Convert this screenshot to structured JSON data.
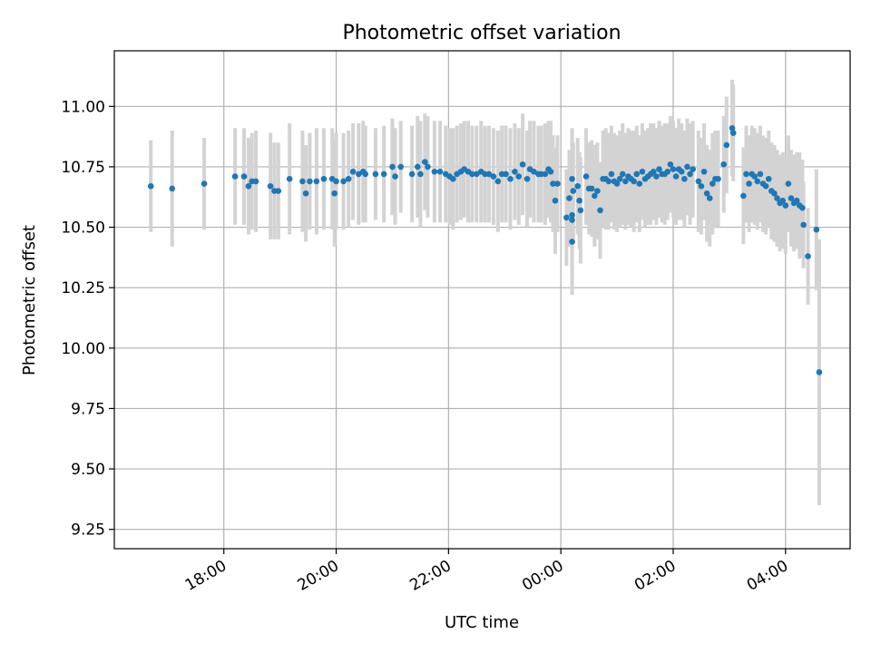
{
  "chart_data": {
    "type": "scatter",
    "title": "Photometric offset variation",
    "xlabel": "UTC time",
    "ylabel": "Photometric offset",
    "grid": true,
    "x_unit": "hours relative to 00:00 UTC",
    "xlim": [
      -7.95,
      5.15
    ],
    "ylim": [
      9.17,
      11.23
    ],
    "x_ticks": [
      {
        "value": -6,
        "label": "18:00"
      },
      {
        "value": -4,
        "label": "20:00"
      },
      {
        "value": -2,
        "label": "22:00"
      },
      {
        "value": 0,
        "label": "00:00"
      },
      {
        "value": 2,
        "label": "02:00"
      },
      {
        "value": 4,
        "label": "04:00"
      }
    ],
    "y_ticks": [
      {
        "value": 9.25,
        "label": "9.25"
      },
      {
        "value": 9.5,
        "label": "9.50"
      },
      {
        "value": 9.75,
        "label": "9.75"
      },
      {
        "value": 10.0,
        "label": "10.00"
      },
      {
        "value": 10.25,
        "label": "10.25"
      },
      {
        "value": 10.5,
        "label": "10.50"
      },
      {
        "value": 10.75,
        "label": "10.75"
      },
      {
        "value": 11.0,
        "label": "11.00"
      }
    ],
    "colors": {
      "point": "#1f77b4",
      "errorbar": "#d3d3d3",
      "grid": "#b0b0b0",
      "axis": "#000000"
    },
    "series": [
      {
        "name": "offset",
        "columns": [
          "x",
          "y",
          "err"
        ],
        "points": [
          [
            -7.3,
            10.67,
            0.19
          ],
          [
            -6.92,
            10.66,
            0.24
          ],
          [
            -6.35,
            10.68,
            0.19
          ],
          [
            -5.8,
            10.71,
            0.2
          ],
          [
            -5.64,
            10.71,
            0.2
          ],
          [
            -5.56,
            10.67,
            0.2
          ],
          [
            -5.5,
            10.69,
            0.2
          ],
          [
            -5.43,
            10.69,
            0.21
          ],
          [
            -5.17,
            10.67,
            0.22
          ],
          [
            -5.1,
            10.65,
            0.2
          ],
          [
            -5.03,
            10.65,
            0.2
          ],
          [
            -4.83,
            10.7,
            0.23
          ],
          [
            -4.6,
            10.69,
            0.21
          ],
          [
            -4.54,
            10.64,
            0.2
          ],
          [
            -4.47,
            10.69,
            0.2
          ],
          [
            -4.35,
            10.69,
            0.22
          ],
          [
            -4.22,
            10.7,
            0.21
          ],
          [
            -4.07,
            10.7,
            0.21
          ],
          [
            -4.03,
            10.64,
            0.22
          ],
          [
            -4.0,
            10.69,
            0.2
          ],
          [
            -3.87,
            10.69,
            0.2
          ],
          [
            -3.78,
            10.7,
            0.2
          ],
          [
            -3.7,
            10.73,
            0.2
          ],
          [
            -3.6,
            10.72,
            0.21
          ],
          [
            -3.52,
            10.73,
            0.21
          ],
          [
            -3.48,
            10.72,
            0.2
          ],
          [
            -3.3,
            10.72,
            0.19
          ],
          [
            -3.15,
            10.72,
            0.2
          ],
          [
            -3.0,
            10.75,
            0.2
          ],
          [
            -2.95,
            10.71,
            0.2
          ],
          [
            -2.85,
            10.75,
            0.19
          ],
          [
            -2.65,
            10.72,
            0.2
          ],
          [
            -2.55,
            10.75,
            0.21
          ],
          [
            -2.5,
            10.72,
            0.22
          ],
          [
            -2.42,
            10.77,
            0.2
          ],
          [
            -2.37,
            10.75,
            0.21
          ],
          [
            -2.25,
            10.73,
            0.21
          ],
          [
            -2.15,
            10.73,
            0.21
          ],
          [
            -2.05,
            10.72,
            0.2
          ],
          [
            -1.98,
            10.71,
            0.2
          ],
          [
            -1.92,
            10.7,
            0.21
          ],
          [
            -1.85,
            10.72,
            0.2
          ],
          [
            -1.78,
            10.73,
            0.2
          ],
          [
            -1.72,
            10.74,
            0.2
          ],
          [
            -1.65,
            10.73,
            0.21
          ],
          [
            -1.58,
            10.72,
            0.2
          ],
          [
            -1.5,
            10.72,
            0.2
          ],
          [
            -1.42,
            10.73,
            0.21
          ],
          [
            -1.35,
            10.72,
            0.2
          ],
          [
            -1.28,
            10.72,
            0.2
          ],
          [
            -1.2,
            10.71,
            0.2
          ],
          [
            -1.12,
            10.69,
            0.21
          ],
          [
            -1.05,
            10.72,
            0.2
          ],
          [
            -0.98,
            10.72,
            0.2
          ],
          [
            -0.9,
            10.7,
            0.21
          ],
          [
            -0.82,
            10.73,
            0.2
          ],
          [
            -0.75,
            10.71,
            0.2
          ],
          [
            -0.68,
            10.76,
            0.21
          ],
          [
            -0.6,
            10.7,
            0.2
          ],
          [
            -0.55,
            10.74,
            0.2
          ],
          [
            -0.48,
            10.73,
            0.21
          ],
          [
            -0.4,
            10.72,
            0.2
          ],
          [
            -0.35,
            10.72,
            0.2
          ],
          [
            -0.28,
            10.72,
            0.21
          ],
          [
            -0.22,
            10.74,
            0.2
          ],
          [
            -0.18,
            10.73,
            0.21
          ],
          [
            -0.14,
            10.68,
            0.2
          ],
          [
            -0.1,
            10.61,
            0.22
          ],
          [
            -0.06,
            10.68,
            0.2
          ],
          [
            0.1,
            10.54,
            0.2
          ],
          [
            0.15,
            10.62,
            0.2
          ],
          [
            0.2,
            10.7,
            0.21
          ],
          [
            0.2,
            10.55,
            0.18
          ],
          [
            0.2,
            10.44,
            0.22
          ],
          [
            0.2,
            10.53,
            0.25
          ],
          [
            0.22,
            10.65,
            0.2
          ],
          [
            0.3,
            10.67,
            0.2
          ],
          [
            0.33,
            10.61,
            0.2
          ],
          [
            0.35,
            10.57,
            0.22
          ],
          [
            0.45,
            10.71,
            0.2
          ],
          [
            0.5,
            10.66,
            0.19
          ],
          [
            0.55,
            10.66,
            0.2
          ],
          [
            0.6,
            10.63,
            0.21
          ],
          [
            0.65,
            10.65,
            0.2
          ],
          [
            0.7,
            10.57,
            0.2
          ],
          [
            0.75,
            10.7,
            0.2
          ],
          [
            0.8,
            10.7,
            0.21
          ],
          [
            0.85,
            10.69,
            0.2
          ],
          [
            0.9,
            10.72,
            0.2
          ],
          [
            0.95,
            10.69,
            0.2
          ],
          [
            1.0,
            10.68,
            0.2
          ],
          [
            1.05,
            10.7,
            0.2
          ],
          [
            1.1,
            10.72,
            0.21
          ],
          [
            1.15,
            10.69,
            0.2
          ],
          [
            1.2,
            10.71,
            0.2
          ],
          [
            1.25,
            10.7,
            0.2
          ],
          [
            1.3,
            10.69,
            0.21
          ],
          [
            1.35,
            10.72,
            0.2
          ],
          [
            1.4,
            10.68,
            0.2
          ],
          [
            1.45,
            10.73,
            0.2
          ],
          [
            1.5,
            10.7,
            0.2
          ],
          [
            1.55,
            10.71,
            0.2
          ],
          [
            1.6,
            10.72,
            0.21
          ],
          [
            1.65,
            10.73,
            0.2
          ],
          [
            1.7,
            10.71,
            0.2
          ],
          [
            1.75,
            10.74,
            0.2
          ],
          [
            1.8,
            10.72,
            0.2
          ],
          [
            1.85,
            10.72,
            0.21
          ],
          [
            1.9,
            10.73,
            0.2
          ],
          [
            1.95,
            10.76,
            0.2
          ],
          [
            2.0,
            10.74,
            0.2
          ],
          [
            2.05,
            10.71,
            0.2
          ],
          [
            2.1,
            10.74,
            0.21
          ],
          [
            2.15,
            10.73,
            0.2
          ],
          [
            2.2,
            10.7,
            0.2
          ],
          [
            2.25,
            10.75,
            0.2
          ],
          [
            2.3,
            10.72,
            0.21
          ],
          [
            2.35,
            10.74,
            0.2
          ],
          [
            2.45,
            10.69,
            0.21
          ],
          [
            2.5,
            10.67,
            0.2
          ],
          [
            2.55,
            10.73,
            0.2
          ],
          [
            2.6,
            10.64,
            0.2
          ],
          [
            2.65,
            10.62,
            0.2
          ],
          [
            2.7,
            10.68,
            0.21
          ],
          [
            2.75,
            10.7,
            0.2
          ],
          [
            2.8,
            10.7,
            0.2
          ],
          [
            2.9,
            10.76,
            0.2
          ],
          [
            2.95,
            10.84,
            0.2
          ],
          [
            3.05,
            10.91,
            0.2
          ],
          [
            3.07,
            10.89,
            0.2
          ],
          [
            3.25,
            10.63,
            0.2
          ],
          [
            3.3,
            10.72,
            0.2
          ],
          [
            3.35,
            10.68,
            0.2
          ],
          [
            3.4,
            10.72,
            0.2
          ],
          [
            3.45,
            10.71,
            0.2
          ],
          [
            3.5,
            10.69,
            0.2
          ],
          [
            3.55,
            10.72,
            0.2
          ],
          [
            3.6,
            10.68,
            0.2
          ],
          [
            3.65,
            10.67,
            0.2
          ],
          [
            3.7,
            10.7,
            0.2
          ],
          [
            3.75,
            10.65,
            0.2
          ],
          [
            3.8,
            10.64,
            0.2
          ],
          [
            3.85,
            10.62,
            0.2
          ],
          [
            3.9,
            10.6,
            0.2
          ],
          [
            3.95,
            10.61,
            0.2
          ],
          [
            4.0,
            10.59,
            0.2
          ],
          [
            4.05,
            10.68,
            0.2
          ],
          [
            4.1,
            10.62,
            0.2
          ],
          [
            4.15,
            10.6,
            0.2
          ],
          [
            4.2,
            10.61,
            0.2
          ],
          [
            4.25,
            10.59,
            0.22
          ],
          [
            4.3,
            10.58,
            0.2
          ],
          [
            4.32,
            10.51,
            0.18
          ],
          [
            4.4,
            10.38,
            0.2
          ],
          [
            4.55,
            10.49,
            0.25
          ],
          [
            4.6,
            9.9,
            0.55
          ]
        ]
      }
    ]
  }
}
